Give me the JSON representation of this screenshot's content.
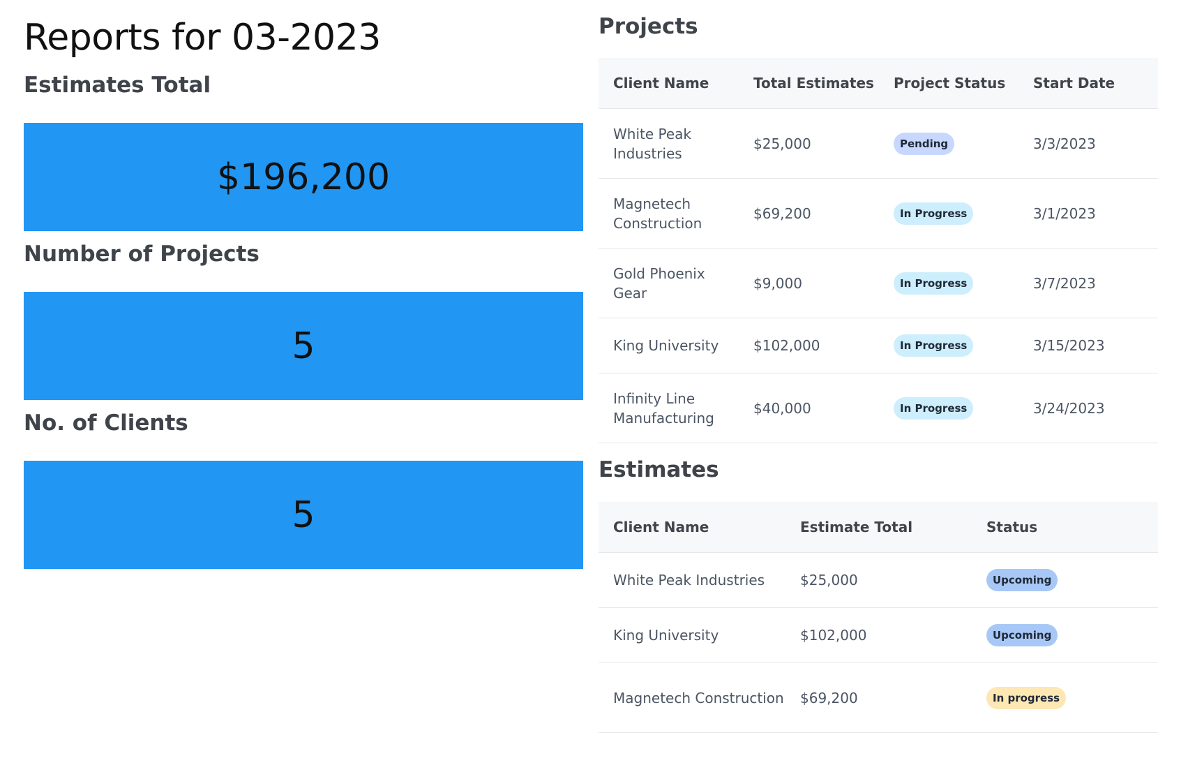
{
  "page": {
    "title": "Reports for 03-2023"
  },
  "stats": {
    "estimates_total_label": "Estimates Total",
    "estimates_total_value": "$196,200",
    "projects_label": "Number of Projects",
    "projects_value": "5",
    "clients_label": "No. of Clients",
    "clients_value": "5"
  },
  "projects": {
    "heading": "Projects",
    "columns": [
      "Client Name",
      "Total Estimates",
      "Project Status",
      "Start Date"
    ],
    "rows": [
      {
        "client": "White Peak Industries",
        "total": "$25,000",
        "status": "Pending",
        "start": "3/3/2023"
      },
      {
        "client": "Magnetech Construction",
        "total": "$69,200",
        "status": "In Progress",
        "start": "3/1/2023"
      },
      {
        "client": "Gold Phoenix Gear",
        "total": "$9,000",
        "status": "In Progress",
        "start": "3/7/2023"
      },
      {
        "client": "King University",
        "total": "$102,000",
        "status": "In Progress",
        "start": "3/15/2023"
      },
      {
        "client": "Infinity Line Manufacturing",
        "total": "$40,000",
        "status": "In Progress",
        "start": "3/24/2023"
      }
    ]
  },
  "estimates": {
    "heading": "Estimates",
    "columns": [
      "Client Name",
      "Estimate Total",
      "Status"
    ],
    "rows": [
      {
        "client": "White Peak Industries",
        "total": "$25,000",
        "status": "Upcoming"
      },
      {
        "client": "King University",
        "total": "$102,000",
        "status": "Upcoming"
      },
      {
        "client": "Magnetech Construction",
        "total": "$69,200",
        "status": "In progress"
      }
    ]
  },
  "colors": {
    "stat_box": "#2196f3",
    "badge_pending": "#c7d7fe",
    "badge_in_progress": "#cdeefc",
    "badge_upcoming": "#a7c8f6",
    "badge_in_progress_yellow": "#fde7b3"
  }
}
